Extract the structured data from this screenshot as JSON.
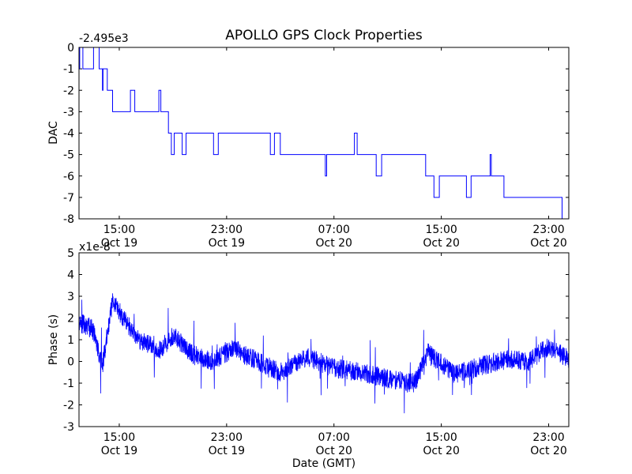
{
  "title": "APOLLO GPS Clock Properties",
  "shared_xlabel": "Date (GMT)",
  "chart_data": [
    {
      "type": "line",
      "ylabel": "DAC",
      "offset_label": "-2.495e3",
      "ylim": [
        -8,
        0
      ],
      "yticks": [
        0,
        -1,
        -2,
        -3,
        -4,
        -5,
        -6,
        -7,
        -8
      ],
      "ytick_labels": [
        "0",
        "-1",
        "-2",
        "-3",
        "-4",
        "-5",
        "-6",
        "-7",
        "-8"
      ],
      "xlim": [
        "2009-10-19 12:00",
        "2009-10-21 00:30"
      ],
      "xticks": [
        "2009-10-19 15:00",
        "2009-10-19 23:00",
        "2009-10-20 07:00",
        "2009-10-20 15:00",
        "2009-10-20 23:00"
      ],
      "xtick_labels": [
        [
          "15:00",
          "Oct 19"
        ],
        [
          "23:00",
          "Oct 19"
        ],
        [
          "07:00",
          "Oct 20"
        ],
        [
          "15:00",
          "Oct 20"
        ],
        [
          "23:00",
          "Oct 20"
        ]
      ],
      "series": [
        {
          "color": "#0000ff",
          "x": [
            "2009-10-19 12:00",
            "2009-10-19 13:05",
            "2009-10-19 13:30",
            "2009-10-19 13:45",
            "2009-10-19 14:30",
            "2009-10-19 18:40",
            "2009-10-19 23:00",
            "2009-10-20 03:00",
            "2009-10-20 07:00",
            "2009-10-20 13:50",
            "2009-10-20 18:00",
            "2009-10-20 19:40",
            "2009-10-20 21:30",
            "2009-10-20 23:00",
            "2009-10-21 00:00",
            "2009-10-21 00:30"
          ],
          "y": [
            -1,
            0,
            -1,
            -2,
            -3,
            -4,
            -4,
            -5,
            -5,
            -6,
            -6,
            -7,
            -7,
            -7,
            -8,
            -8
          ]
        }
      ]
    },
    {
      "type": "line",
      "ylabel": "Phase (s)",
      "offset_label": "x1e-8",
      "ylim": [
        -3,
        5
      ],
      "yticks": [
        5,
        4,
        3,
        2,
        1,
        0,
        -1,
        -2,
        -3
      ],
      "ytick_labels": [
        "5",
        "4",
        "3",
        "2",
        "1",
        "0",
        "-1",
        "-2",
        "-3"
      ],
      "xlim": [
        "2009-10-19 12:00",
        "2009-10-21 00:30"
      ],
      "xticks": [
        "2009-10-19 15:00",
        "2009-10-19 23:00",
        "2009-10-20 07:00",
        "2009-10-20 15:00",
        "2009-10-20 23:00"
      ],
      "xtick_labels": [
        [
          "15:00",
          "Oct 19"
        ],
        [
          "23:00",
          "Oct 19"
        ],
        [
          "07:00",
          "Oct 20"
        ],
        [
          "15:00",
          "Oct 20"
        ],
        [
          "23:00",
          "Oct 20"
        ]
      ],
      "series": [
        {
          "color": "#0000ff",
          "x": [
            "2009-10-19 12:00",
            "2009-10-19 13:00",
            "2009-10-19 13:45",
            "2009-10-19 14:30",
            "2009-10-19 15:30",
            "2009-10-19 16:30",
            "2009-10-19 18:00",
            "2009-10-19 19:00",
            "2009-10-19 20:30",
            "2009-10-19 22:00",
            "2009-10-19 23:30",
            "2009-10-20 01:00",
            "2009-10-20 03:00",
            "2009-10-20 05:00",
            "2009-10-20 07:00",
            "2009-10-20 09:00",
            "2009-10-20 11:00",
            "2009-10-20 13:00",
            "2009-10-20 14:00",
            "2009-10-20 16:00",
            "2009-10-20 18:00",
            "2009-10-20 20:00",
            "2009-10-20 21:30",
            "2009-10-20 23:00",
            "2009-10-21 00:30"
          ],
          "y": [
            1.8,
            1.5,
            -0.2,
            2.8,
            1.8,
            1.0,
            0.5,
            1.2,
            0.3,
            0.0,
            0.6,
            0.1,
            -0.5,
            0.2,
            -0.3,
            -0.5,
            -0.8,
            -1.0,
            0.4,
            -0.6,
            -0.2,
            0.1,
            0.0,
            0.7,
            0.1
          ]
        }
      ]
    }
  ]
}
